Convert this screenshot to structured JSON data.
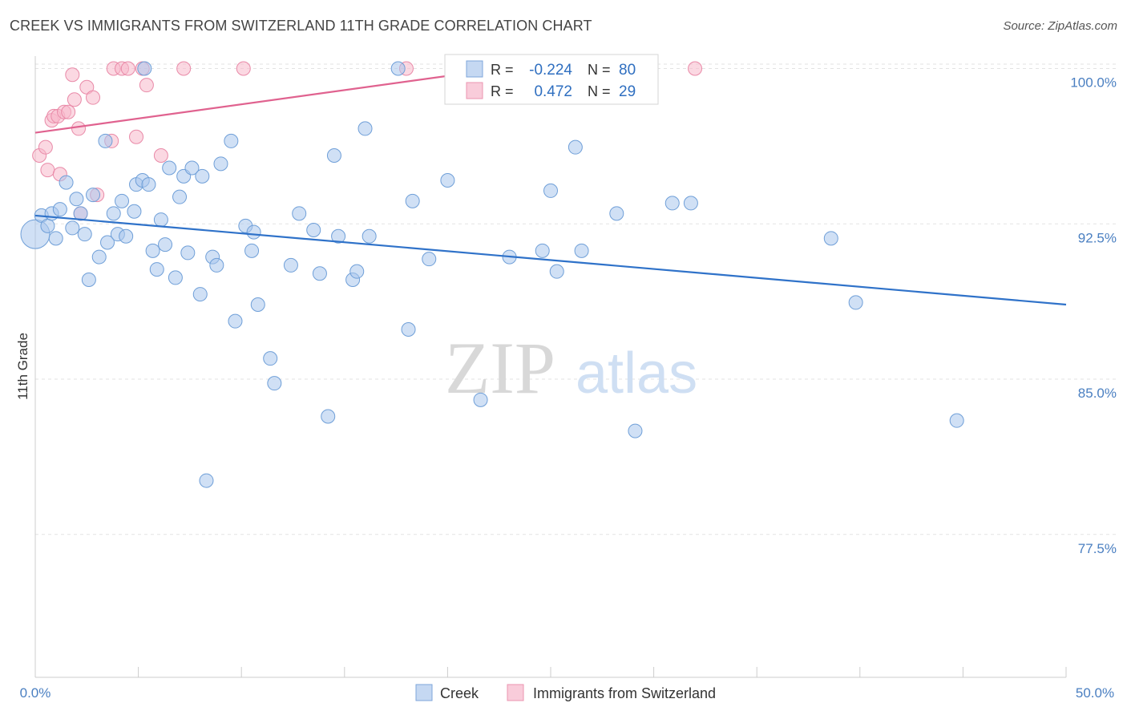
{
  "header": {
    "title": "CREEK VS IMMIGRANTS FROM SWITZERLAND 11TH GRADE CORRELATION CHART",
    "source": "Source: ZipAtlas.com"
  },
  "watermark": {
    "zip": "ZIP",
    "atlas": "atlas"
  },
  "colors": {
    "creek_fill": "#a9c6ec",
    "creek_stroke": "#6f9fd8",
    "creek_line": "#2f72c9",
    "swiss_fill": "#f7b8cb",
    "swiss_stroke": "#e98aa8",
    "swiss_line": "#e0628f",
    "tick_label": "#4a7fc1",
    "grid": "#e3e3e3"
  },
  "stats_legend": {
    "rows": [
      {
        "r_label": "R =",
        "r_value": "-0.224",
        "n_label": "N =",
        "n_value": "80"
      },
      {
        "r_label": "R =",
        "r_value": "0.472",
        "n_label": "N =",
        "n_value": "29"
      }
    ]
  },
  "chart_data": {
    "type": "scatter",
    "title": "CREEK VS IMMIGRANTS FROM SWITZERLAND 11TH GRADE CORRELATION CHART",
    "xlabel": "",
    "ylabel": "11th Grade",
    "xlim": [
      0,
      50
    ],
    "ylim": [
      70.6,
      100.6
    ],
    "x_tick_labels": [
      "0.0%",
      "50.0%"
    ],
    "y_ticks": [
      77.5,
      85.0,
      92.5,
      100.0
    ],
    "y_tick_labels": [
      "77.5%",
      "85.0%",
      "92.5%",
      "100.0%"
    ],
    "grid": true,
    "legend_position": "bottom",
    "series": [
      {
        "name": "Creek",
        "r": -0.224,
        "n": 80,
        "trend": [
          [
            0,
            92.9
          ],
          [
            50,
            88.6
          ]
        ],
        "points": [
          [
            0.0,
            92.0
          ],
          [
            0.3,
            92.9
          ],
          [
            0.6,
            92.4
          ],
          [
            0.8,
            93.0
          ],
          [
            1.0,
            91.8
          ],
          [
            1.2,
            93.2
          ],
          [
            1.5,
            94.5
          ],
          [
            1.8,
            92.3
          ],
          [
            2.0,
            93.7
          ],
          [
            2.2,
            93.0
          ],
          [
            2.4,
            92.0
          ],
          [
            2.6,
            89.8
          ],
          [
            2.8,
            93.9
          ],
          [
            3.1,
            90.9
          ],
          [
            3.4,
            96.5
          ],
          [
            3.5,
            91.6
          ],
          [
            3.8,
            93.0
          ],
          [
            4.0,
            92.0
          ],
          [
            4.2,
            93.6
          ],
          [
            4.4,
            91.9
          ],
          [
            4.8,
            93.1
          ],
          [
            4.9,
            94.4
          ],
          [
            5.2,
            94.6
          ],
          [
            5.3,
            100.0
          ],
          [
            5.5,
            94.4
          ],
          [
            5.7,
            91.2
          ],
          [
            5.9,
            90.3
          ],
          [
            6.1,
            92.7
          ],
          [
            6.3,
            91.5
          ],
          [
            6.5,
            95.2
          ],
          [
            6.8,
            89.9
          ],
          [
            7.0,
            93.8
          ],
          [
            7.2,
            94.8
          ],
          [
            7.4,
            91.1
          ],
          [
            7.6,
            95.2
          ],
          [
            8.0,
            89.1
          ],
          [
            8.1,
            94.8
          ],
          [
            8.3,
            80.1
          ],
          [
            8.6,
            90.9
          ],
          [
            8.8,
            90.5
          ],
          [
            9.0,
            95.4
          ],
          [
            9.5,
            96.5
          ],
          [
            9.7,
            87.8
          ],
          [
            10.2,
            92.4
          ],
          [
            10.5,
            91.2
          ],
          [
            10.6,
            92.1
          ],
          [
            10.8,
            88.6
          ],
          [
            11.4,
            86.0
          ],
          [
            11.6,
            84.8
          ],
          [
            12.4,
            90.5
          ],
          [
            12.8,
            93.0
          ],
          [
            13.5,
            92.2
          ],
          [
            13.8,
            90.1
          ],
          [
            14.2,
            83.2
          ],
          [
            14.5,
            95.8
          ],
          [
            14.7,
            91.9
          ],
          [
            15.4,
            89.8
          ],
          [
            15.6,
            90.2
          ],
          [
            16.0,
            97.1
          ],
          [
            16.2,
            91.9
          ],
          [
            17.6,
            100.0
          ],
          [
            18.1,
            87.4
          ],
          [
            18.3,
            93.6
          ],
          [
            19.1,
            90.8
          ],
          [
            20.0,
            94.6
          ],
          [
            21.6,
            84.0
          ],
          [
            23.0,
            90.9
          ],
          [
            23.9,
            100.0
          ],
          [
            24.6,
            91.2
          ],
          [
            25.0,
            94.1
          ],
          [
            25.3,
            90.2
          ],
          [
            26.2,
            96.2
          ],
          [
            26.5,
            91.2
          ],
          [
            28.2,
            93.0
          ],
          [
            29.1,
            82.5
          ],
          [
            30.9,
            93.5
          ],
          [
            31.8,
            93.5
          ],
          [
            38.6,
            91.8
          ],
          [
            39.8,
            88.7
          ],
          [
            44.7,
            83.0
          ]
        ]
      },
      {
        "name": "Immigrants from Switzerland",
        "r": 0.472,
        "n": 29,
        "trend": [
          [
            0,
            96.9
          ],
          [
            22.6,
            100.0
          ]
        ],
        "points": [
          [
            0.2,
            95.8
          ],
          [
            0.5,
            96.2
          ],
          [
            0.6,
            95.1
          ],
          [
            0.8,
            97.5
          ],
          [
            0.9,
            97.7
          ],
          [
            1.1,
            97.7
          ],
          [
            1.2,
            94.9
          ],
          [
            1.4,
            97.9
          ],
          [
            1.6,
            97.9
          ],
          [
            1.8,
            99.7
          ],
          [
            1.9,
            98.5
          ],
          [
            2.1,
            97.1
          ],
          [
            2.2,
            93.0
          ],
          [
            2.5,
            99.1
          ],
          [
            2.8,
            98.6
          ],
          [
            3.0,
            93.9
          ],
          [
            3.7,
            96.5
          ],
          [
            3.8,
            100.0
          ],
          [
            4.2,
            100.0
          ],
          [
            4.5,
            100.0
          ],
          [
            4.9,
            96.7
          ],
          [
            5.2,
            100.0
          ],
          [
            5.4,
            99.2
          ],
          [
            6.1,
            95.8
          ],
          [
            7.2,
            100.0
          ],
          [
            10.1,
            100.0
          ],
          [
            18.0,
            100.0
          ],
          [
            26.0,
            100.0
          ],
          [
            32.0,
            100.0
          ]
        ]
      }
    ]
  }
}
